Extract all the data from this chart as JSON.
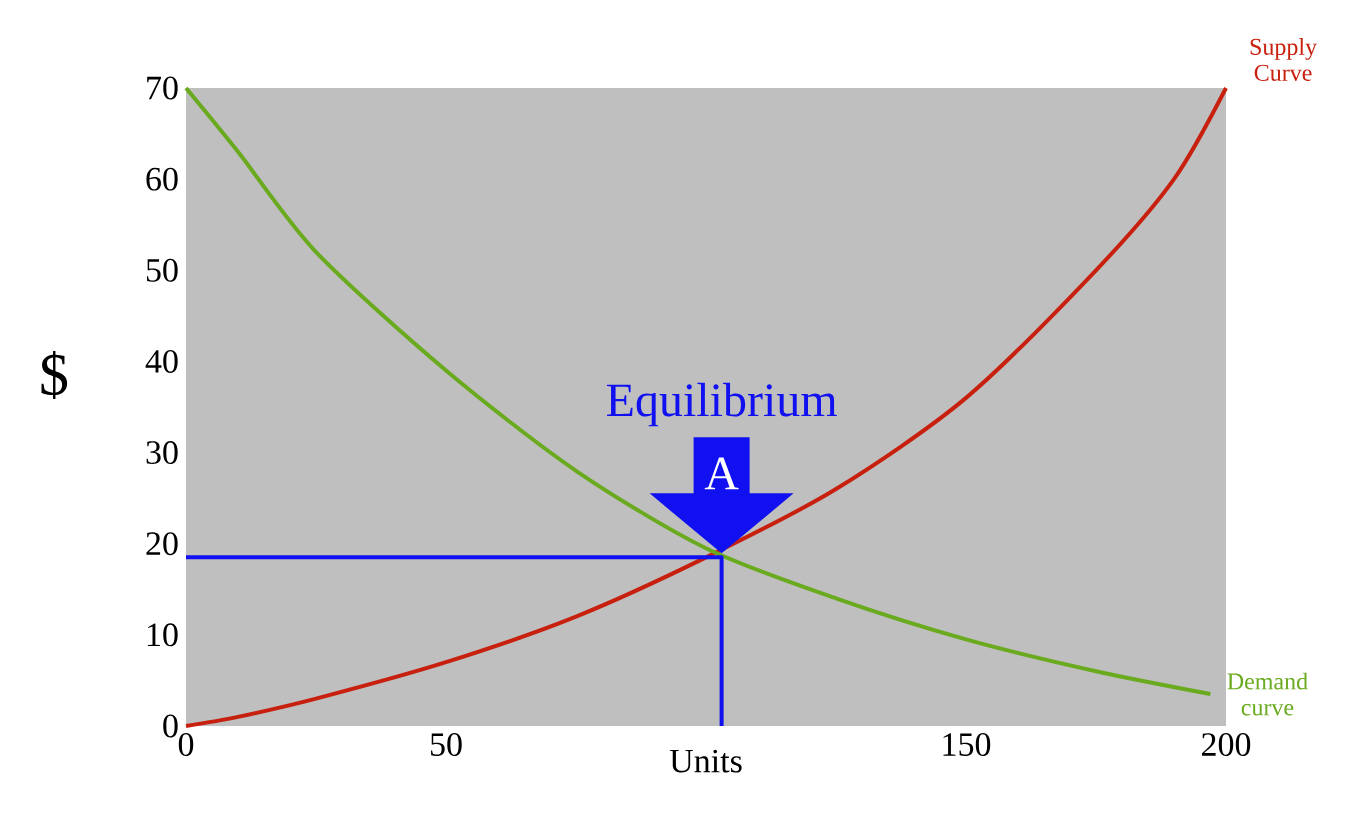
{
  "chart_data": {
    "type": "line",
    "xlabel": "Units",
    "ylabel": "$",
    "xlim": [
      0,
      200
    ],
    "ylim": [
      0,
      70
    ],
    "xticks": [
      0,
      50,
      150,
      200
    ],
    "yticks": [
      0,
      10,
      20,
      30,
      40,
      50,
      60,
      70
    ],
    "grid": false,
    "marker": "none",
    "line_style": "solid",
    "annotations": [
      "Equilibrium",
      {
        "text": "A",
        "x": 103,
        "y": 18.5
      }
    ],
    "series": [
      {
        "name": "Supply Curve",
        "color": "#c8200e",
        "x": [
          0,
          10,
          25,
          50,
          75,
          100,
          125,
          150,
          175,
          190,
          200
        ],
        "values": [
          0,
          1,
          3,
          7,
          12,
          18.5,
          26,
          36,
          50,
          60,
          70
        ]
      },
      {
        "name": "Demand curve",
        "color": "#6aaa1e",
        "x": [
          0,
          10,
          25,
          50,
          75,
          100,
          125,
          150,
          175,
          197
        ],
        "values": [
          70,
          63,
          52,
          39,
          28,
          19.5,
          14,
          9.5,
          6,
          3.5
        ]
      },
      {
        "color": "#1010f0",
        "x": [
          0,
          103,
          103
        ],
        "values": [
          18.5,
          18.5,
          0
        ]
      }
    ]
  }
}
